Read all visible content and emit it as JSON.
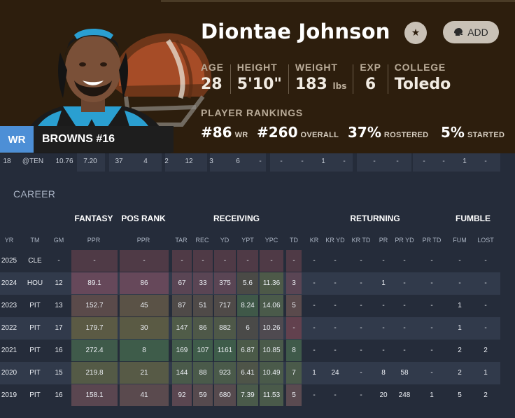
{
  "player": {
    "name": "Diontae Johnson",
    "position": "WR",
    "team_label": "BROWNS #16",
    "add_label": "ADD"
  },
  "bio": {
    "age_label": "AGE",
    "age": "28",
    "height_label": "HEIGHT",
    "height": "5'10\"",
    "weight_label": "WEIGHT",
    "weight": "183",
    "weight_unit": "lbs",
    "exp_label": "EXP",
    "exp": "6",
    "college_label": "COLLEGE",
    "college": "Toledo"
  },
  "rankings": {
    "title": "PLAYER RANKINGS",
    "pos_rank": "#86",
    "pos_rank_label": "WR",
    "overall_rank": "#260",
    "overall_label": "OVERALL",
    "rostered": "37%",
    "rostered_label": "ROSTERED",
    "started": "5%",
    "started_label": "STARTED"
  },
  "partial_row": [
    "18",
    "@TEN",
    "10.76",
    "7.20",
    "37",
    "4",
    "2",
    "12",
    "3",
    "6",
    "-",
    "-",
    "-",
    "1",
    "-",
    "-",
    "-",
    "-",
    "-",
    "1",
    "-"
  ],
  "career": {
    "title": "CAREER",
    "groups": [
      "FANTASY",
      "POS RANK",
      "RECEIVING",
      "RETURNING",
      "FUMBLE"
    ],
    "columns": [
      "YR",
      "TM",
      "GM",
      "PPR",
      "PPR",
      "TAR",
      "REC",
      "YD",
      "YPT",
      "YPC",
      "TD",
      "KR",
      "KR YD",
      "KR TD",
      "PR",
      "PR YD",
      "PR TD",
      "FUM",
      "LOST"
    ],
    "rows": [
      [
        "2025",
        "CLE",
        "-",
        "-",
        "-",
        "-",
        "-",
        "-",
        "-",
        "-",
        "-",
        "-",
        "-",
        "-",
        "-",
        "-",
        "-",
        "-",
        "-"
      ],
      [
        "2024",
        "HOU",
        "12",
        "89.1",
        "86",
        "67",
        "33",
        "375",
        "5.6",
        "11.36",
        "3",
        "-",
        "-",
        "-",
        "1",
        "-",
        "-",
        "-",
        "-"
      ],
      [
        "2023",
        "PIT",
        "13",
        "152.7",
        "45",
        "87",
        "51",
        "717",
        "8.24",
        "14.06",
        "5",
        "-",
        "-",
        "-",
        "-",
        "-",
        "-",
        "1",
        "-"
      ],
      [
        "2022",
        "PIT",
        "17",
        "179.7",
        "30",
        "147",
        "86",
        "882",
        "6",
        "10.26",
        "-",
        "-",
        "-",
        "-",
        "-",
        "-",
        "-",
        "1",
        "-"
      ],
      [
        "2021",
        "PIT",
        "16",
        "272.4",
        "8",
        "169",
        "107",
        "1161",
        "6.87",
        "10.85",
        "8",
        "-",
        "-",
        "-",
        "-",
        "-",
        "-",
        "2",
        "2"
      ],
      [
        "2020",
        "PIT",
        "15",
        "219.8",
        "21",
        "144",
        "88",
        "923",
        "6.41",
        "10.49",
        "7",
        "1",
        "24",
        "-",
        "8",
        "58",
        "-",
        "2",
        "1"
      ],
      [
        "2019",
        "PIT",
        "16",
        "158.1",
        "41",
        "92",
        "59",
        "680",
        "7.39",
        "11.53",
        "5",
        "-",
        "-",
        "-",
        "20",
        "248",
        "1",
        "5",
        "2"
      ]
    ]
  },
  "colors": {
    "header_bg": "#2d1e0d",
    "page_bg": "#252c3a",
    "position_badge": "#4d8fd6",
    "helmet_orange": "#b4532a"
  }
}
